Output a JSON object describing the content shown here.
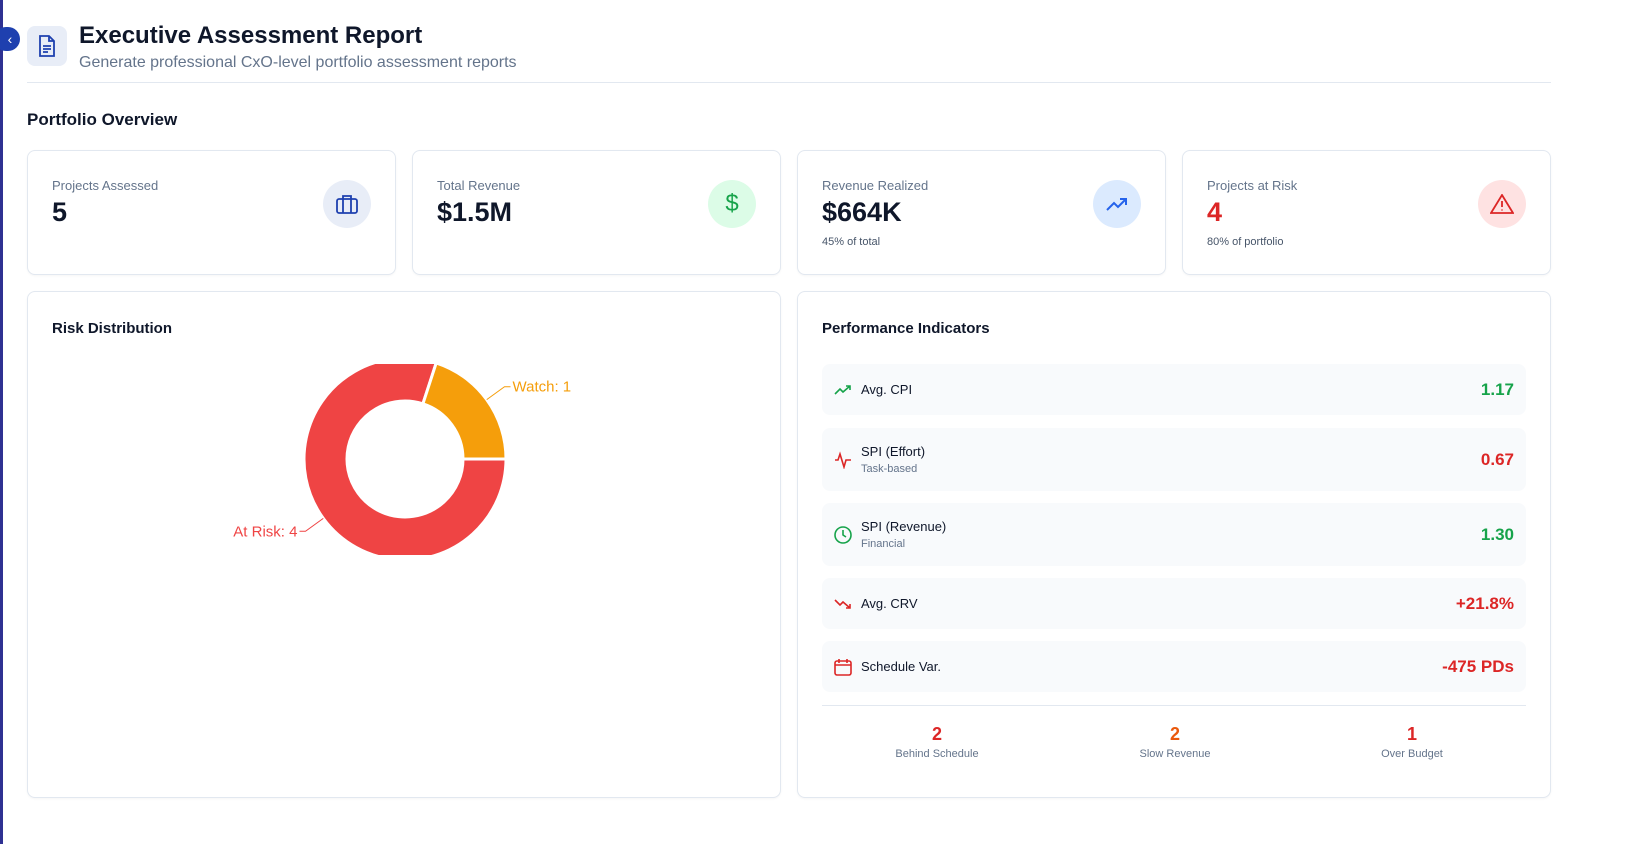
{
  "header": {
    "title": "Executive Assessment Report",
    "subtitle": "Generate professional CxO-level portfolio assessment reports"
  },
  "section_title": "Portfolio Overview",
  "stats": [
    {
      "label": "Projects Assessed",
      "value": "5",
      "icon": "briefcase-icon",
      "color": "#1e40af",
      "bg": "#e8edf7"
    },
    {
      "label": "Total Revenue",
      "value": "$1.5M",
      "icon": "dollar-icon",
      "color": "#16a34a",
      "bg": "#dcfce7"
    },
    {
      "label": "Revenue Realized",
      "value": "$664K",
      "note": "45% of total",
      "icon": "trending-up-icon",
      "color": "#2563eb",
      "bg": "#dbeafe"
    },
    {
      "label": "Projects at Risk",
      "value": "4",
      "note": "80% of portfolio",
      "icon": "alert-triangle-icon",
      "color": "#dc2626",
      "bg": "#fee2e2"
    }
  ],
  "risk": {
    "title": "Risk Distribution"
  },
  "chart_data": {
    "type": "pie",
    "donut": true,
    "slices": [
      {
        "label": "At Risk: 4",
        "name": "At Risk",
        "value": 4,
        "color": "#ef4444"
      },
      {
        "label": "Watch: 1",
        "name": "Watch",
        "value": 1,
        "color": "#f59e0b"
      }
    ]
  },
  "performance": {
    "title": "Performance Indicators",
    "items": [
      {
        "label": "Avg. CPI",
        "value": "1.17",
        "color": "#16a34a",
        "icon": "trending-up-icon"
      },
      {
        "label": "SPI (Effort)",
        "sub": "Task-based",
        "value": "0.67",
        "color": "#dc2626",
        "icon": "activity-icon"
      },
      {
        "label": "SPI (Revenue)",
        "sub": "Financial",
        "value": "1.30",
        "color": "#16a34a",
        "icon": "clock-icon"
      },
      {
        "label": "Avg. CRV",
        "value": "+21.8%",
        "color": "#dc2626",
        "icon": "trending-down-icon"
      },
      {
        "label": "Schedule Var.",
        "value": "-475 PDs",
        "color": "#dc2626",
        "icon": "calendar-icon"
      }
    ],
    "summary": [
      {
        "value": "2",
        "label": "Behind Schedule",
        "color": "#dc2626"
      },
      {
        "value": "2",
        "label": "Slow Revenue",
        "color": "#ea580c"
      },
      {
        "value": "1",
        "label": "Over Budget",
        "color": "#dc2626"
      }
    ]
  }
}
